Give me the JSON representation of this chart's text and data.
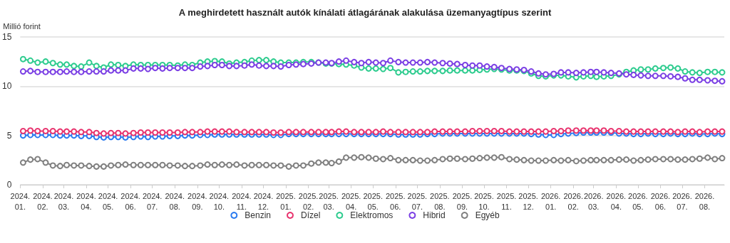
{
  "chart_data": {
    "type": "line",
    "title": "A meghirdetett használt autók kínálati átlagárának alakulása üzemanyagtípus szerint",
    "ylabel": "Millió forint",
    "x": [
      "2024-01-05",
      "2024-01-15",
      "2024-01-25",
      "2024-02-05",
      "2024-02-15",
      "2024-02-25",
      "2024-03-05",
      "2024-03-15",
      "2024-03-25",
      "2024-04-05",
      "2024-04-15",
      "2024-04-25",
      "2024-05-05",
      "2024-05-15",
      "2024-05-25",
      "2024-06-05",
      "2024-06-15",
      "2024-06-25",
      "2024-07-05",
      "2024-07-15",
      "2024-07-25",
      "2024-08-05",
      "2024-08-15",
      "2024-08-25",
      "2024-09-05",
      "2024-09-15",
      "2024-09-25",
      "2024-10-05",
      "2024-10-15",
      "2024-10-25",
      "2024-11-05",
      "2024-11-15",
      "2024-11-25",
      "2024-12-05",
      "2024-12-15",
      "2024-12-25",
      "2025-01-05",
      "2025-01-15",
      "2025-01-25",
      "2025-02-05",
      "2025-02-15",
      "2025-02-25",
      "2025-03-05",
      "2025-03-15",
      "2025-03-25",
      "2025-04-05",
      "2025-04-15",
      "2025-04-25",
      "2025-05-05",
      "2025-05-15",
      "2025-05-25",
      "2025-06-05",
      "2025-06-15",
      "2025-06-25",
      "2025-07-05",
      "2025-07-15",
      "2025-07-25",
      "2025-08-05",
      "2025-08-15",
      "2025-08-25",
      "2025-09-05",
      "2025-09-15",
      "2025-09-25",
      "2025-10-05",
      "2025-10-15",
      "2025-10-25",
      "2025-11-05",
      "2025-11-15",
      "2025-11-25",
      "2025-12-05",
      "2025-12-15",
      "2025-12-25",
      "2026-01-05",
      "2026-01-15",
      "2026-01-25",
      "2026-02-05",
      "2026-02-15",
      "2026-02-25",
      "2026-03-05",
      "2026-03-15",
      "2026-03-25",
      "2026-04-05",
      "2026-04-15",
      "2026-04-25",
      "2026-05-05",
      "2026-05-15",
      "2026-05-25",
      "2026-06-05",
      "2026-06-15",
      "2026-06-25",
      "2026-07-05",
      "2026-07-15",
      "2026-07-25",
      "2026-08-05",
      "2026-08-15",
      "2026-08-25"
    ],
    "series": [
      {
        "name": "Benzin",
        "color": "#2b7bf0",
        "values": [
          5.0,
          5.05,
          5.05,
          5.05,
          5.05,
          5.0,
          5.0,
          5.0,
          4.95,
          4.95,
          4.85,
          4.8,
          4.85,
          4.85,
          4.8,
          4.85,
          4.9,
          4.85,
          4.9,
          4.9,
          4.95,
          4.95,
          5.0,
          5.0,
          5.05,
          5.05,
          5.1,
          5.1,
          5.1,
          5.1,
          5.1,
          5.1,
          5.1,
          5.1,
          5.05,
          5.05,
          5.15,
          5.15,
          5.15,
          5.15,
          5.15,
          5.15,
          5.15,
          5.15,
          5.15,
          5.15,
          5.15,
          5.15,
          5.15,
          5.15,
          5.15,
          5.1,
          5.1,
          5.1,
          5.1,
          5.15,
          5.15,
          5.2,
          5.2,
          5.2,
          5.2,
          5.2,
          5.2,
          5.2,
          5.2,
          5.2,
          5.2,
          5.2,
          5.2,
          5.15,
          5.1,
          5.05,
          5.05,
          5.15,
          5.2,
          5.25,
          5.3,
          5.3,
          5.3,
          5.3,
          5.3,
          5.2,
          5.2,
          5.15,
          5.15,
          5.2,
          5.15,
          5.15,
          5.2,
          5.15,
          5.15,
          5.2,
          5.15,
          5.15,
          5.2,
          5.15
        ]
      },
      {
        "name": "Dízel",
        "color": "#e8336e",
        "values": [
          5.45,
          5.5,
          5.45,
          5.45,
          5.45,
          5.4,
          5.4,
          5.4,
          5.35,
          5.35,
          5.25,
          5.2,
          5.25,
          5.25,
          5.2,
          5.25,
          5.3,
          5.3,
          5.3,
          5.3,
          5.3,
          5.3,
          5.35,
          5.35,
          5.35,
          5.4,
          5.4,
          5.4,
          5.4,
          5.35,
          5.35,
          5.35,
          5.35,
          5.35,
          5.3,
          5.3,
          5.35,
          5.35,
          5.35,
          5.35,
          5.35,
          5.35,
          5.35,
          5.4,
          5.4,
          5.35,
          5.35,
          5.35,
          5.35,
          5.4,
          5.35,
          5.35,
          5.35,
          5.35,
          5.35,
          5.35,
          5.4,
          5.4,
          5.4,
          5.4,
          5.4,
          5.45,
          5.45,
          5.45,
          5.45,
          5.45,
          5.4,
          5.4,
          5.4,
          5.4,
          5.4,
          5.4,
          5.45,
          5.45,
          5.5,
          5.5,
          5.5,
          5.5,
          5.5,
          5.5,
          5.45,
          5.45,
          5.4,
          5.4,
          5.4,
          5.4,
          5.4,
          5.4,
          5.4,
          5.35,
          5.4,
          5.4,
          5.35,
          5.4,
          5.4,
          5.4
        ]
      },
      {
        "name": "Elektromos",
        "color": "#2ecc8f",
        "values": [
          12.75,
          12.6,
          12.4,
          12.5,
          12.35,
          12.2,
          12.2,
          12.05,
          12.0,
          12.4,
          12.05,
          11.9,
          12.2,
          12.15,
          12.05,
          12.2,
          12.15,
          12.15,
          12.15,
          12.15,
          12.15,
          12.1,
          12.2,
          12.15,
          12.4,
          12.5,
          12.55,
          12.5,
          12.3,
          12.4,
          12.45,
          12.6,
          12.65,
          12.65,
          12.5,
          12.4,
          12.4,
          12.4,
          12.45,
          12.45,
          12.4,
          12.3,
          12.3,
          12.25,
          12.2,
          12.1,
          11.9,
          11.8,
          11.8,
          11.75,
          11.85,
          11.4,
          11.45,
          11.5,
          11.5,
          11.55,
          11.55,
          11.55,
          11.6,
          11.6,
          11.6,
          11.6,
          11.65,
          11.7,
          11.75,
          11.7,
          11.6,
          11.6,
          11.55,
          11.3,
          11.05,
          11.0,
          11.1,
          11.1,
          11.0,
          10.9,
          11.0,
          11.05,
          10.95,
          11.0,
          11.05,
          11.2,
          11.45,
          11.6,
          11.7,
          11.7,
          11.8,
          11.85,
          11.9,
          11.8,
          11.5,
          11.4,
          11.35,
          11.45,
          11.45,
          11.4
        ]
      },
      {
        "name": "Hibrid",
        "color": "#7b3fe4",
        "values": [
          11.5,
          11.55,
          11.45,
          11.45,
          11.45,
          11.45,
          11.5,
          11.45,
          11.45,
          11.5,
          11.5,
          11.5,
          11.6,
          11.6,
          11.6,
          11.8,
          11.8,
          11.75,
          11.85,
          11.8,
          11.85,
          11.85,
          11.85,
          11.85,
          12.0,
          12.05,
          12.15,
          12.15,
          12.05,
          12.05,
          12.1,
          12.2,
          12.1,
          12.05,
          12.05,
          12.0,
          12.15,
          12.2,
          12.25,
          12.3,
          12.4,
          12.4,
          12.35,
          12.5,
          12.6,
          12.45,
          12.35,
          12.45,
          12.4,
          12.35,
          12.6,
          12.45,
          12.4,
          12.4,
          12.4,
          12.45,
          12.4,
          12.35,
          12.3,
          12.25,
          12.15,
          12.1,
          12.1,
          12.0,
          11.95,
          11.85,
          11.75,
          11.7,
          11.65,
          11.5,
          11.3,
          11.2,
          11.25,
          11.4,
          11.4,
          11.35,
          11.4,
          11.45,
          11.45,
          11.4,
          11.35,
          11.3,
          11.2,
          11.15,
          11.1,
          11.05,
          11.05,
          11.05,
          11.0,
          10.95,
          10.8,
          10.65,
          10.65,
          10.6,
          10.55,
          10.5
        ]
      },
      {
        "name": "Egyéb",
        "color": "#808080",
        "values": [
          2.25,
          2.55,
          2.6,
          2.25,
          1.95,
          1.9,
          2.0,
          1.95,
          1.95,
          1.9,
          1.85,
          1.85,
          1.95,
          2.0,
          2.05,
          2.0,
          2.0,
          2.0,
          2.0,
          2.0,
          1.95,
          1.95,
          1.9,
          1.9,
          1.95,
          2.05,
          2.0,
          2.05,
          2.0,
          2.05,
          1.95,
          2.0,
          2.0,
          2.0,
          1.95,
          1.95,
          1.85,
          1.95,
          1.95,
          2.15,
          2.25,
          2.25,
          2.2,
          2.35,
          2.75,
          2.75,
          2.8,
          2.75,
          2.65,
          2.6,
          2.7,
          2.5,
          2.5,
          2.5,
          2.45,
          2.45,
          2.5,
          2.6,
          2.65,
          2.65,
          2.6,
          2.65,
          2.7,
          2.75,
          2.75,
          2.8,
          2.6,
          2.55,
          2.5,
          2.45,
          2.45,
          2.45,
          2.5,
          2.45,
          2.5,
          2.4,
          2.45,
          2.5,
          2.5,
          2.5,
          2.5,
          2.55,
          2.55,
          2.45,
          2.5,
          2.55,
          2.6,
          2.6,
          2.6,
          2.55,
          2.55,
          2.6,
          2.65,
          2.75,
          2.6,
          2.7
        ]
      }
    ],
    "xlim": [
      "2024-01-01",
      "2026-08-28"
    ],
    "xticks": [
      {
        "value": "2024-01-01",
        "label": "2024. 01."
      },
      {
        "value": "2024-02-01",
        "label": "2024. 02."
      },
      {
        "value": "2024-03-01",
        "label": "2024. 03."
      },
      {
        "value": "2024-04-01",
        "label": "2024. 04."
      },
      {
        "value": "2024-05-01",
        "label": "2024. 05."
      },
      {
        "value": "2024-06-01",
        "label": "2024. 06."
      },
      {
        "value": "2024-07-01",
        "label": "2024. 07."
      },
      {
        "value": "2024-08-01",
        "label": "2024. 08."
      },
      {
        "value": "2024-09-01",
        "label": "2024. 09."
      },
      {
        "value": "2024-10-01",
        "label": "2024. 10."
      },
      {
        "value": "2024-11-01",
        "label": "2024. 11."
      },
      {
        "value": "2024-12-01",
        "label": "2024. 12."
      },
      {
        "value": "2025-01-01",
        "label": "2025. 01."
      },
      {
        "value": "2025-02-01",
        "label": "2025. 02."
      },
      {
        "value": "2025-03-01",
        "label": "2025. 03."
      },
      {
        "value": "2025-04-01",
        "label": "2025. 04."
      },
      {
        "value": "2025-05-01",
        "label": "2025. 05."
      },
      {
        "value": "2025-06-01",
        "label": "2025. 06."
      },
      {
        "value": "2025-07-01",
        "label": "2025. 07."
      },
      {
        "value": "2025-08-01",
        "label": "2025. 08."
      },
      {
        "value": "2025-09-01",
        "label": "2025. 09."
      },
      {
        "value": "2025-10-01",
        "label": "2025. 10."
      },
      {
        "value": "2025-11-01",
        "label": "2025. 11."
      },
      {
        "value": "2025-12-01",
        "label": "2025. 12."
      },
      {
        "value": "2026-01-01",
        "label": "2026. 01."
      },
      {
        "value": "2026-02-01",
        "label": "2026. 02."
      },
      {
        "value": "2026-03-01",
        "label": "2026. 03."
      },
      {
        "value": "2026-04-01",
        "label": "2026. 04."
      },
      {
        "value": "2026-05-01",
        "label": "2026. 05."
      },
      {
        "value": "2026-06-01",
        "label": "2026. 06."
      },
      {
        "value": "2026-07-01",
        "label": "2026. 07."
      },
      {
        "value": "2026-08-01",
        "label": "2026. 08."
      }
    ],
    "ylim": [
      0,
      15
    ],
    "yticks": [
      0,
      5,
      10,
      15
    ],
    "grid": "y",
    "legend": "bottom",
    "marker": "circle",
    "line_style": "solid"
  }
}
